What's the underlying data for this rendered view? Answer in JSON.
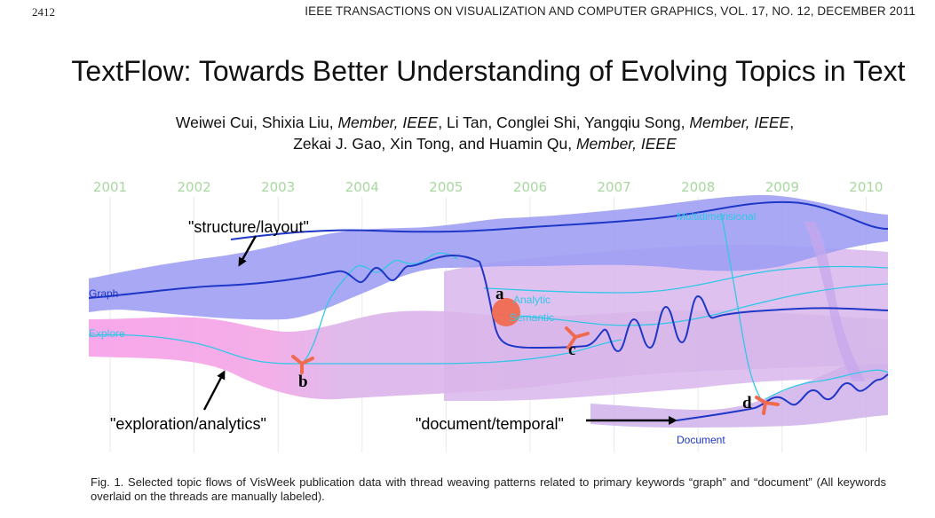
{
  "header": {
    "page_number": "2412",
    "journal": "IEEE TRANSACTIONS ON VISUALIZATION AND COMPUTER GRAPHICS, VOL. 17, NO. 12, DECEMBER 2011"
  },
  "title": "TextFlow: Towards Better Understanding of Evolving Topics in Text",
  "authors": {
    "line1": [
      {
        "text": "Weiwei Cui, Shixia Liu, ",
        "italic": false
      },
      {
        "text": "Member, IEEE",
        "italic": true
      },
      {
        "text": ", Li Tan, Conglei Shi, Yangqiu Song, ",
        "italic": false
      },
      {
        "text": "Member, IEEE",
        "italic": true
      },
      {
        "text": ",",
        "italic": false
      }
    ],
    "line2": [
      {
        "text": "Zekai J. Gao, Xin Tong, and Huamin Qu, ",
        "italic": false
      },
      {
        "text": "Member, IEEE",
        "italic": true
      }
    ]
  },
  "figure": {
    "years": [
      "2001",
      "2002",
      "2003",
      "2004",
      "2005",
      "2006",
      "2007",
      "2008",
      "2009",
      "2010"
    ],
    "topic_labels": {
      "graph": "Graph",
      "explore": "Explore",
      "multidimensional": "Multidimensional",
      "analytic": "Analytic",
      "semantic": "Semantic",
      "document": "Document"
    },
    "annotations": {
      "structure": "\"structure/layout\"",
      "exploration": "\"exploration/analytics\"",
      "document": "\"document/temporal\""
    },
    "markers": {
      "a": "a",
      "b": "b",
      "c": "c",
      "d": "d"
    },
    "colors": {
      "year_label": "#a8d8a0",
      "blue_flow": "#9f9ff4",
      "lilac_flow": "#d9b6ec",
      "pink_flow": "#f6a3e8",
      "dark_thread": "#1f37c6",
      "light_thread": "#33c6e6",
      "event_marker": "#f06a50"
    }
  },
  "caption": "Fig. 1.  Selected topic flows of VisWeek publication data with thread weaving patterns related to primary keywords “graph” and “document” (All keywords overlaid on the threads are manually labeled)."
}
